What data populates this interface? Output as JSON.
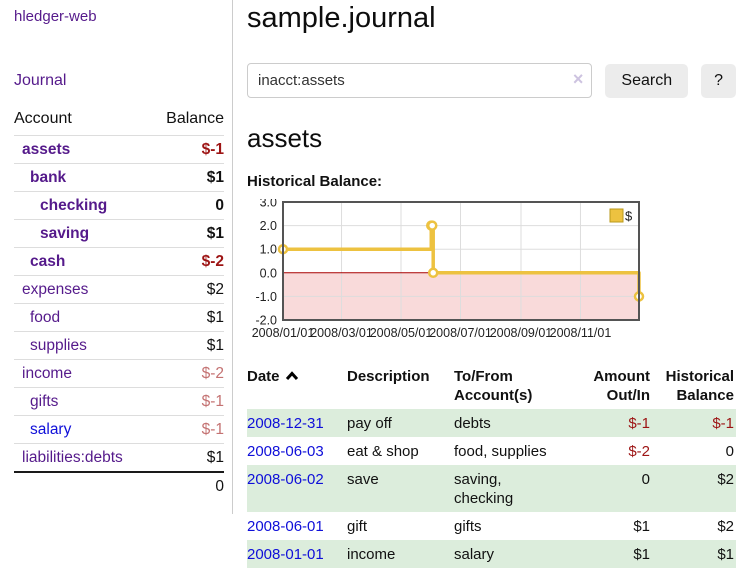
{
  "app": {
    "title": "hledger-web"
  },
  "sidebar": {
    "journal_link": "Journal",
    "accounts": {
      "headers": {
        "account": "Account",
        "balance": "Balance"
      },
      "rows": [
        {
          "name": "assets",
          "balance": "$-1",
          "indent": 1,
          "emphasis": true
        },
        {
          "name": "bank",
          "balance": "$1",
          "indent": 2,
          "emphasis": true
        },
        {
          "name": "checking",
          "balance": "0",
          "indent": 3,
          "emphasis": true
        },
        {
          "name": "saving",
          "balance": "$1",
          "indent": 3,
          "emphasis": true
        },
        {
          "name": "cash",
          "balance": "$-2",
          "indent": 2,
          "emphasis": true
        },
        {
          "name": "expenses",
          "balance": "$2",
          "indent": 1
        },
        {
          "name": "food",
          "balance": "$1",
          "indent": 2
        },
        {
          "name": "supplies",
          "balance": "$1",
          "indent": 2
        },
        {
          "name": "income",
          "balance": "$-2",
          "indent": 1,
          "dim_negative": true
        },
        {
          "name": "gifts",
          "balance": "$-1",
          "indent": 2,
          "dim_negative": true
        },
        {
          "name": "salary",
          "balance": "$-1",
          "indent": 2,
          "dim_negative": true,
          "unvisited": true
        },
        {
          "name": "liabilities:debts",
          "balance": "$1",
          "indent": 1
        }
      ],
      "total": "0"
    }
  },
  "main": {
    "title": "sample.journal",
    "search": {
      "value": "inacct:assets",
      "clear_icon": "×",
      "search_button": "Search",
      "help_button": "?"
    },
    "section_title": "assets",
    "chart_title": "Historical Balance:"
  },
  "chart_data": {
    "type": "line",
    "step": true,
    "title": "Historical Balance",
    "series": [
      {
        "name": "$",
        "color": "#EDC240",
        "points": [
          [
            "2008-01-01",
            1
          ],
          [
            "2008-06-01",
            2
          ],
          [
            "2008-06-02",
            2
          ],
          [
            "2008-06-03",
            0
          ],
          [
            "2008-12-31",
            -1
          ]
        ]
      }
    ],
    "x_range": [
      "2008-01-01",
      "2008-12-31"
    ],
    "ylim": [
      -2.0,
      3.0
    ],
    "yticks": [
      "3.0",
      "2.0",
      "1.0",
      "0.0",
      "-1.0",
      "-2.0"
    ],
    "xticks": [
      "2008/01/01",
      "2008/03/01",
      "2008/05/01",
      "2008/07/01",
      "2008/09/01",
      "2008/11/01"
    ],
    "legend": {
      "label": "$",
      "position": "top-right"
    },
    "grid": true,
    "negative_region_color": "#f9dada",
    "zero_line_color": "#a80000",
    "grid_color": "#dddddd",
    "border_color": "#545454"
  },
  "transactions": {
    "headers": {
      "date": "Date",
      "description": "Description",
      "accounts": "To/From Account(s)",
      "amount": "Amount Out/In",
      "balance": "Historical Balance"
    },
    "sort": {
      "column": "date",
      "direction": "ascending"
    },
    "rows": [
      {
        "date": "2008-12-31",
        "description": "pay off",
        "accounts": "debts",
        "amount": "$-1",
        "balance": "$-1"
      },
      {
        "date": "2008-06-03",
        "description": "eat & shop",
        "accounts": "food, supplies",
        "amount": "$-2",
        "balance": "0"
      },
      {
        "date": "2008-06-02",
        "description": "save",
        "accounts": "saving, checking",
        "amount": "0",
        "balance": "$2"
      },
      {
        "date": "2008-06-01",
        "description": "gift",
        "accounts": "gifts",
        "amount": "$1",
        "balance": "$2"
      },
      {
        "date": "2008-01-01",
        "description": "income",
        "accounts": "salary",
        "amount": "$1",
        "balance": "$1"
      }
    ]
  },
  "colors": {
    "link_visited": "#551A8B",
    "link_unvisited": "#0f0fd9",
    "negative": "#9d1414",
    "negative_dim": "#c47272",
    "row_stripe": "#dceddc",
    "series_gold": "#EDC240"
  }
}
